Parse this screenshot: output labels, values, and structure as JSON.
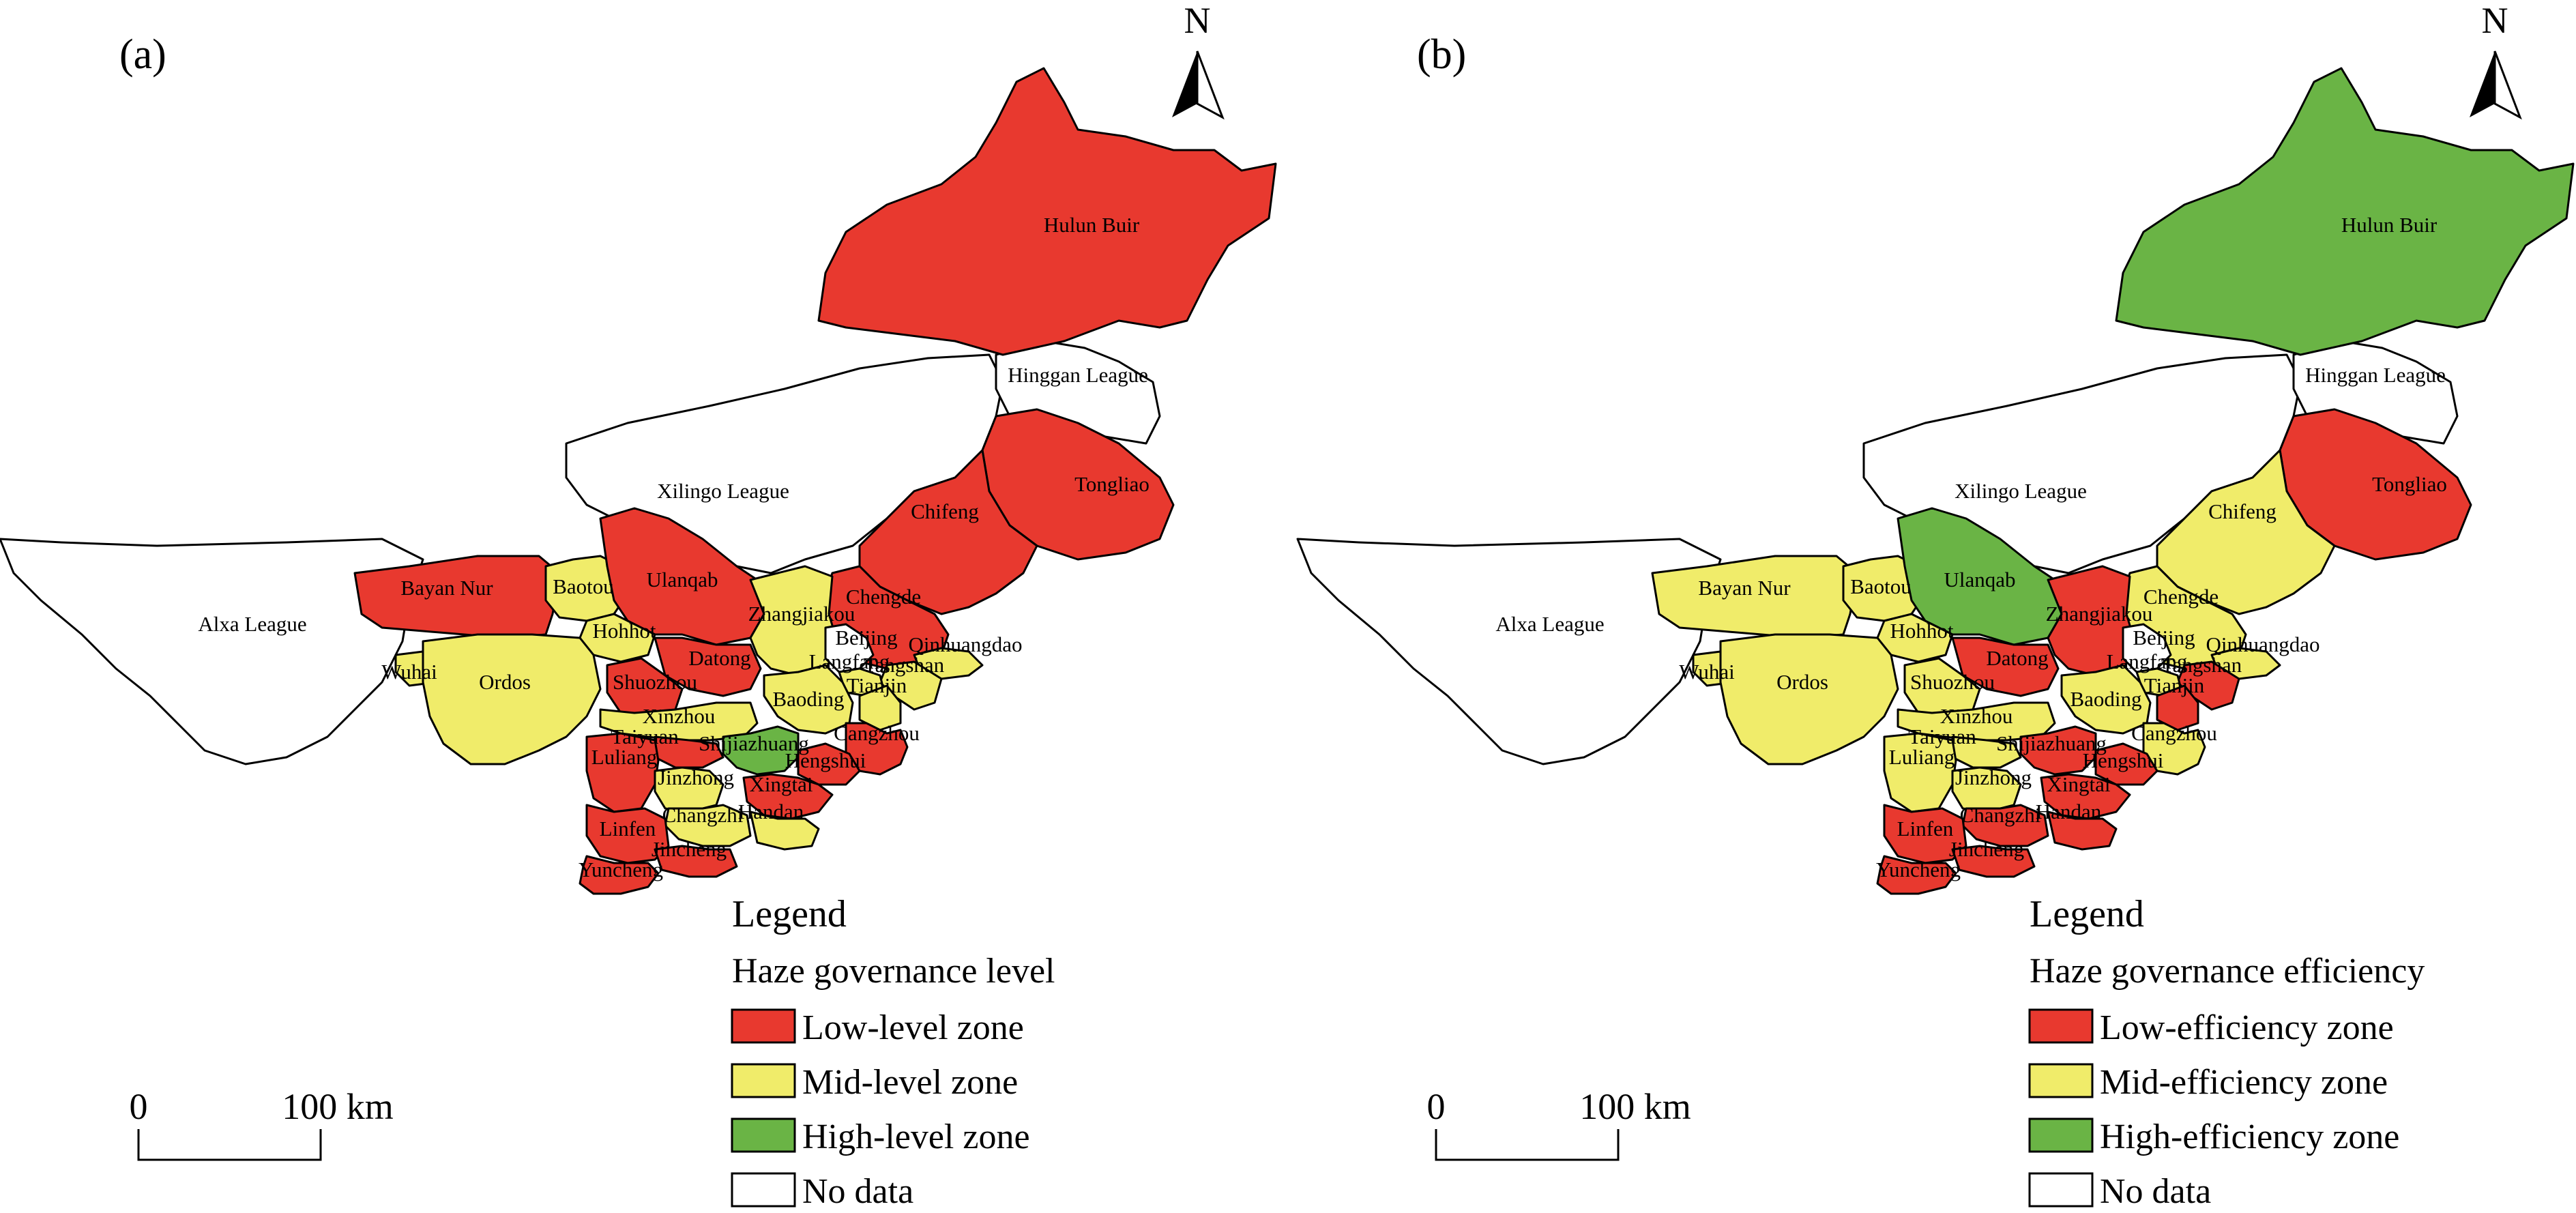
{
  "colors": {
    "low": "#e8392f",
    "mid": "#f0ec6a",
    "high": "#6ab445",
    "nodata": "#ffffff"
  },
  "panels": [
    {
      "id": "a",
      "label": "(a)",
      "north": "N",
      "scale": {
        "zero": "0",
        "distance": "100 km"
      },
      "legend": {
        "title": "Legend",
        "subtitle": "Haze governance level",
        "items": [
          {
            "key": "low",
            "label": "Low-level zone"
          },
          {
            "key": "mid",
            "label": "Mid-level zone"
          },
          {
            "key": "high",
            "label": "High-level zone"
          },
          {
            "key": "nodata",
            "label": "No data"
          }
        ]
      },
      "regions": {
        "hulun-buir": "low",
        "hinggan-league": "nodata",
        "xilingo-league": "nodata",
        "tongliao": "low",
        "chifeng": "low",
        "alxa-league": "nodata",
        "bayan-nur": "low",
        "baotou": "mid",
        "ulanqab": "low",
        "hohhot": "mid",
        "wuhai": "mid",
        "ordos": "mid",
        "chengde": "low",
        "zhangjiakou": "mid",
        "beijing": "nodata",
        "qinhuangdao": "mid",
        "datong": "low",
        "shuozhou": "low",
        "langfang": "mid",
        "tangshan": "mid",
        "tianjin": "mid",
        "baoding": "mid",
        "xinzhou": "mid",
        "cangzhou": "low",
        "taiyuan": "low",
        "shijiazhuang": "high",
        "hengshui": "low",
        "luliang": "low",
        "jinzhong": "mid",
        "xingtai": "low",
        "handan": "mid",
        "changzhi": "mid",
        "linfen": "low",
        "jincheng": "low",
        "yuncheng": "low"
      }
    },
    {
      "id": "b",
      "label": "(b)",
      "north": "N",
      "scale": {
        "zero": "0",
        "distance": "100 km"
      },
      "legend": {
        "title": "Legend",
        "subtitle": "Haze governance efficiency",
        "items": [
          {
            "key": "low",
            "label": "Low-efficiency zone"
          },
          {
            "key": "mid",
            "label": "Mid-efficiency zone"
          },
          {
            "key": "high",
            "label": "High-efficiency zone"
          },
          {
            "key": "nodata",
            "label": "No data"
          }
        ]
      },
      "regions": {
        "hulun-buir": "high",
        "hinggan-league": "nodata",
        "xilingo-league": "nodata",
        "tongliao": "low",
        "chifeng": "mid",
        "alxa-league": "nodata",
        "bayan-nur": "mid",
        "baotou": "mid",
        "ulanqab": "high",
        "hohhot": "mid",
        "wuhai": "mid",
        "ordos": "mid",
        "chengde": "mid",
        "zhangjiakou": "low",
        "beijing": "nodata",
        "qinhuangdao": "mid",
        "datong": "low",
        "shuozhou": "mid",
        "langfang": "mid",
        "tangshan": "low",
        "tianjin": "low",
        "baoding": "mid",
        "xinzhou": "mid",
        "cangzhou": "mid",
        "taiyuan": "mid",
        "shijiazhuang": "low",
        "hengshui": "low",
        "luliang": "mid",
        "jinzhong": "mid",
        "xingtai": "low",
        "handan": "low",
        "changzhi": "low",
        "linfen": "low",
        "jincheng": "low",
        "yuncheng": "low"
      }
    }
  ],
  "region_names": {
    "hulun-buir": "Hulun Buir",
    "hinggan-league": "Hinggan League",
    "xilingo-league": "Xilingo League",
    "tongliao": "Tongliao",
    "chifeng": "Chifeng",
    "alxa-league": "Alxa League",
    "bayan-nur": "Bayan Nur",
    "baotou": "Baotou",
    "ulanqab": "Ulanqab",
    "hohhot": "Hohhot",
    "wuhai": "Wuhai",
    "ordos": "Ordos",
    "chengde": "Chengde",
    "zhangjiakou": "Zhangjiakou",
    "beijing": "Beijing",
    "qinhuangdao": "Qinhuangdao",
    "datong": "Datong",
    "shuozhou": "Shuozhou",
    "langfang": "Langfang",
    "tangshan": "Tangshan",
    "tianjin": "Tianjin",
    "baoding": "Baoding",
    "xinzhou": "Xinzhou",
    "cangzhou": "Cangzhou",
    "taiyuan": "Taiyuan",
    "shijiazhuang": "Shijiazhuang",
    "hengshui": "Hengshui",
    "luliang": "Luliang",
    "jinzhong": "Jinzhong",
    "xingtai": "Xingtai",
    "handan": "Handan",
    "changzhi": "Changzhi",
    "linfen": "Linfen",
    "jincheng": "Jincheng",
    "yuncheng": "Yuncheng"
  }
}
